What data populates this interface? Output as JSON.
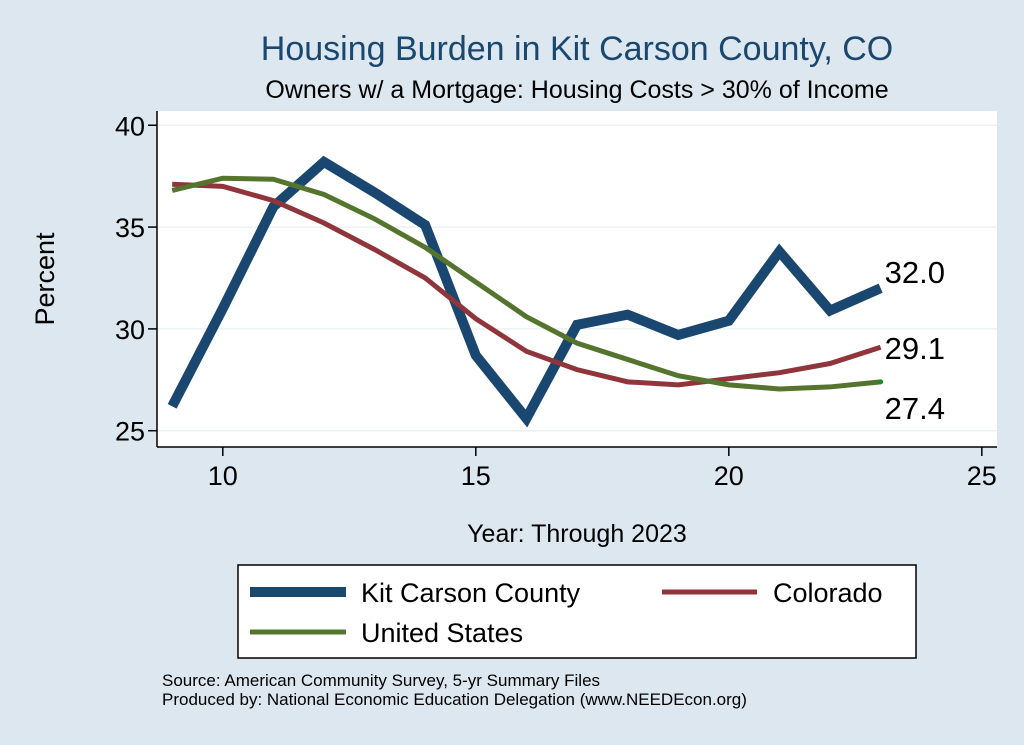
{
  "chart_data": {
    "type": "line",
    "title": "Housing Burden in Kit Carson County, CO",
    "subtitle": "Owners w/ a Mortgage: Housing Costs > 30% of Income",
    "xlabel": "Year: Through 2023",
    "ylabel": "Percent",
    "xlim": [
      8.7,
      25.3
    ],
    "ylim": [
      24.2,
      40.7
    ],
    "xticks": [
      10,
      15,
      20,
      25
    ],
    "yticks": [
      25,
      30,
      35,
      40
    ],
    "grid": true,
    "legend_position": "bottom",
    "x": [
      9,
      10,
      11,
      12,
      13,
      14,
      15,
      16,
      17,
      18,
      19,
      20,
      21,
      22,
      23
    ],
    "series": [
      {
        "name": "Kit Carson County",
        "color": "#1a476f",
        "values": [
          26.2,
          31.0,
          36.0,
          38.2,
          36.7,
          35.1,
          28.7,
          25.6,
          30.2,
          30.7,
          29.7,
          30.4,
          33.8,
          30.9,
          32.0
        ],
        "end_label": "32.0"
      },
      {
        "name": "Colorado",
        "color": "#90353b",
        "values": [
          37.1,
          37.0,
          36.3,
          35.2,
          33.9,
          32.5,
          30.5,
          28.9,
          28.0,
          27.4,
          27.25,
          27.55,
          27.85,
          28.3,
          29.1
        ],
        "end_label": "29.1"
      },
      {
        "name": "United States",
        "color": "#55752f",
        "values": [
          36.8,
          37.4,
          37.35,
          36.6,
          35.4,
          34.0,
          32.3,
          30.6,
          29.3,
          28.5,
          27.7,
          27.25,
          27.05,
          27.15,
          27.4
        ],
        "end_label": "27.4"
      }
    ]
  },
  "source_lines": [
    "Source: American Community Survey, 5-yr Summary Files",
    "Produced by: National Economic Education Delegation (www.NEEDEcon.org)"
  ]
}
